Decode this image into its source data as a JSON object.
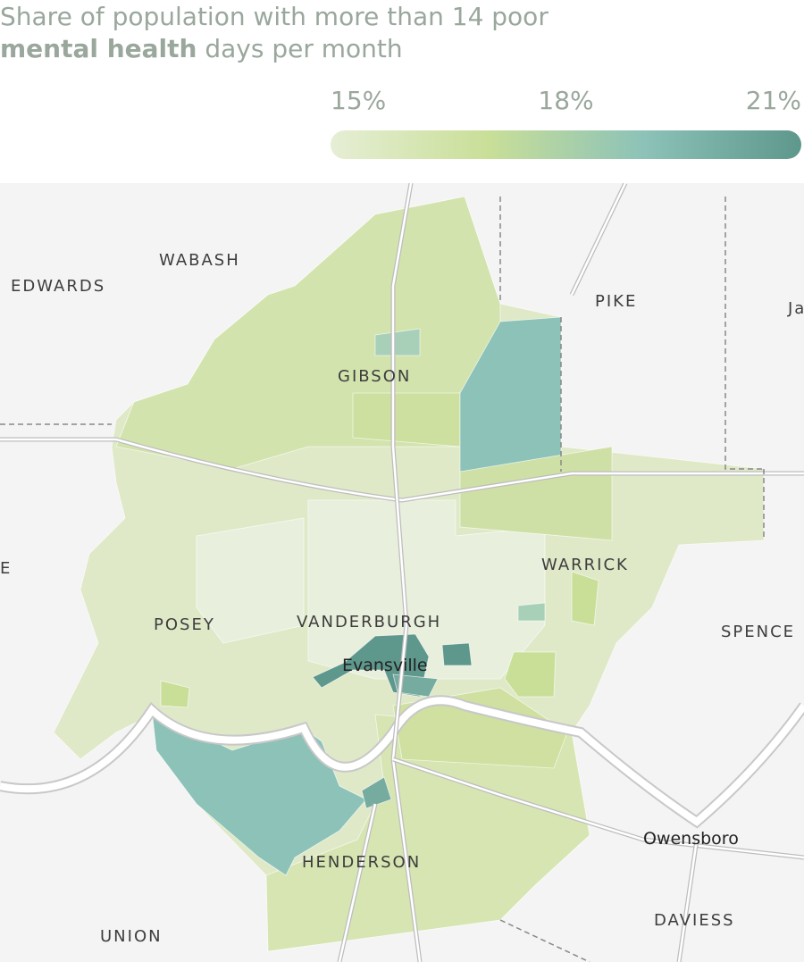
{
  "title": {
    "line1": "Share of population with more than 14 poor",
    "bold": "mental health",
    "rest": "days per month"
  },
  "legend": {
    "range": [
      15,
      21
    ],
    "ticks": [
      {
        "value": 15,
        "label": "15%"
      },
      {
        "value": 18,
        "label": "18%"
      },
      {
        "value": 21,
        "label": "21%"
      }
    ],
    "colors": [
      "#e6eed5",
      "#c9df98",
      "#8cc2b8",
      "#5e978c"
    ]
  },
  "map_labels": {
    "wabash": "WABASH",
    "edwards": "EDWARDS",
    "pike": "PIKE",
    "jasper": "Ja",
    "gibson": "GIBSON",
    "warrick": "WARRICK",
    "west": "E",
    "posey": "POSEY",
    "vanderburgh": "VANDERBURGH",
    "evansville": "Evansville",
    "spencer": "SPENCE",
    "owensboro": "Owensboro",
    "henderson": "HENDERSON",
    "daviess": "DAVIESS",
    "union": "UNION"
  }
}
